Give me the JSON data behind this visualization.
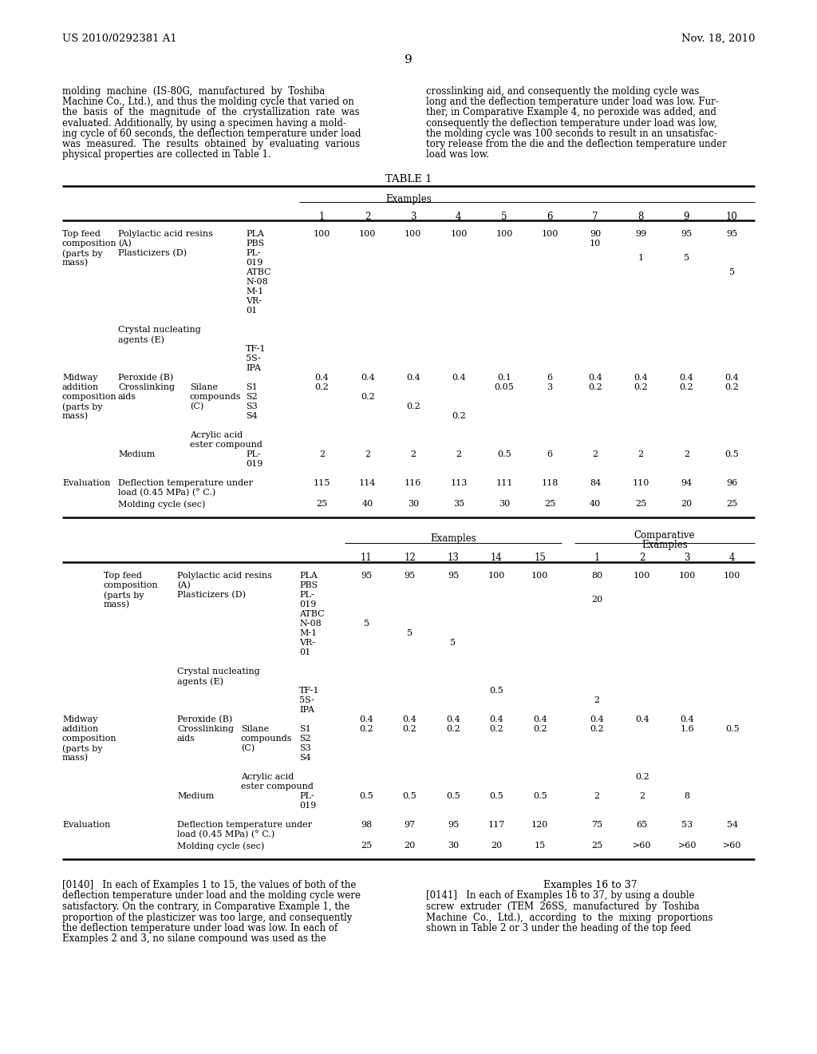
{
  "fig_w": 10.24,
  "fig_h": 13.2,
  "dpi": 100,
  "bg_color": "#ffffff",
  "header_left": "US 2010/0292381 A1",
  "header_right": "Nov. 18, 2010",
  "page_num": "9",
  "para_left": [
    "molding  machine  (IS-80G,  manufactured  by  Toshiba",
    "Machine Co., Ltd.), and thus the molding cycle that varied on",
    "the  basis  of  the  magnitude  of  the  crystallization  rate  was",
    "evaluated. Additionally, by using a specimen having a mold-",
    "ing cycle of 60 seconds, the deflection temperature under load",
    "was  measured.  The  results  obtained  by  evaluating  various",
    "physical properties are collected in Table 1."
  ],
  "para_right": [
    "crosslinking aid, and consequently the molding cycle was",
    "long and the deflection temperature under load was low. Fur-",
    "ther, in Comparative Example 4, no peroxide was added, and",
    "consequently the deflection temperature under load was low,",
    "the molding cycle was 100 seconds to result in an unsatisfac-",
    "tory release from the die and the deflection temperature under",
    "load was low."
  ],
  "table_title": "TABLE 1",
  "bot_left": [
    "[0140]   In each of Examples 1 to 15, the values of both of the",
    "deflection temperature under load and the molding cycle were",
    "satisfactory. On the contrary, in Comparative Example 1, the",
    "proportion of the plasticizer was too large, and consequently",
    "the deflection temperature under load was low. In each of",
    "Examples 2 and 3, no silane compound was used as the"
  ],
  "bot_right_head": "Examples 16 to 37",
  "bot_right": [
    "[0141]   In each of Examples 16 to 37, by using a double",
    "screw  extruder  (TEM  26SS,  manufactured  by  Toshiba",
    "Machine  Co.,  Ltd.),  according  to  the  mixing  proportions",
    "shown in Table 2 or 3 under the heading of the top feed"
  ]
}
